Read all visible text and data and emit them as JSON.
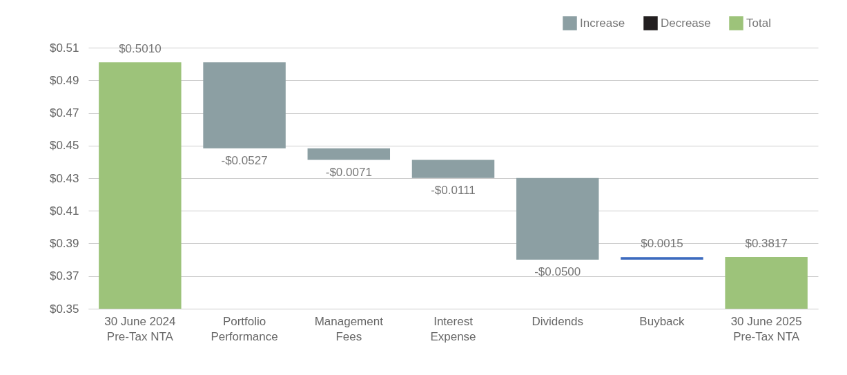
{
  "chart_data": {
    "type": "bar",
    "categories": [
      "30 June 2024 Pre-Tax NTA",
      "Portfolio Performance",
      "Management Fees",
      "Interest Expense",
      "Dividends",
      "Buyback",
      "30 June 2025 Pre-Tax NTA"
    ],
    "series": [
      {
        "name": "Increase",
        "color": "#8c9fa3",
        "values": [
          null,
          -0.0527,
          -0.0071,
          -0.0111,
          -0.05,
          null,
          null
        ],
        "base": [
          null,
          0.501,
          0.4483,
          0.4412,
          0.4301,
          null,
          null
        ],
        "value_labels": [
          null,
          "-$0.0527",
          "-$0.0071",
          "-$0.0111",
          "-$0.0500",
          null,
          null
        ]
      },
      {
        "name": "Decrease",
        "color": "#231f20",
        "values": [
          null,
          null,
          null,
          null,
          null,
          null,
          null
        ]
      },
      {
        "name": "Total",
        "color": "#9dc37a",
        "values": [
          0.501,
          null,
          null,
          null,
          null,
          null,
          0.3817
        ],
        "value_labels": [
          "$0.5010",
          null,
          null,
          null,
          null,
          null,
          "$0.3817"
        ]
      },
      {
        "color": "#3d6bbf",
        "values": [
          null,
          null,
          null,
          null,
          null,
          0.0015,
          null
        ],
        "base": [
          null,
          null,
          null,
          null,
          null,
          0.3801,
          null
        ],
        "value_labels": [
          null,
          null,
          null,
          null,
          null,
          "$0.0015",
          null
        ]
      }
    ],
    "ylim": [
      0.35,
      0.51
    ],
    "yticks": [
      {
        "value": 0.35,
        "label": "$0.35"
      },
      {
        "value": 0.37,
        "label": "$0.37"
      },
      {
        "value": 0.39,
        "label": "$0.39"
      },
      {
        "value": 0.41,
        "label": "$0.41"
      },
      {
        "value": 0.43,
        "label": "$0.43"
      },
      {
        "value": 0.45,
        "label": "$0.45"
      },
      {
        "value": 0.47,
        "label": "$0.47"
      },
      {
        "value": 0.49,
        "label": "$0.49"
      },
      {
        "value": 0.51,
        "label": "$0.51"
      }
    ],
    "grid": "y",
    "legend": "top right"
  }
}
